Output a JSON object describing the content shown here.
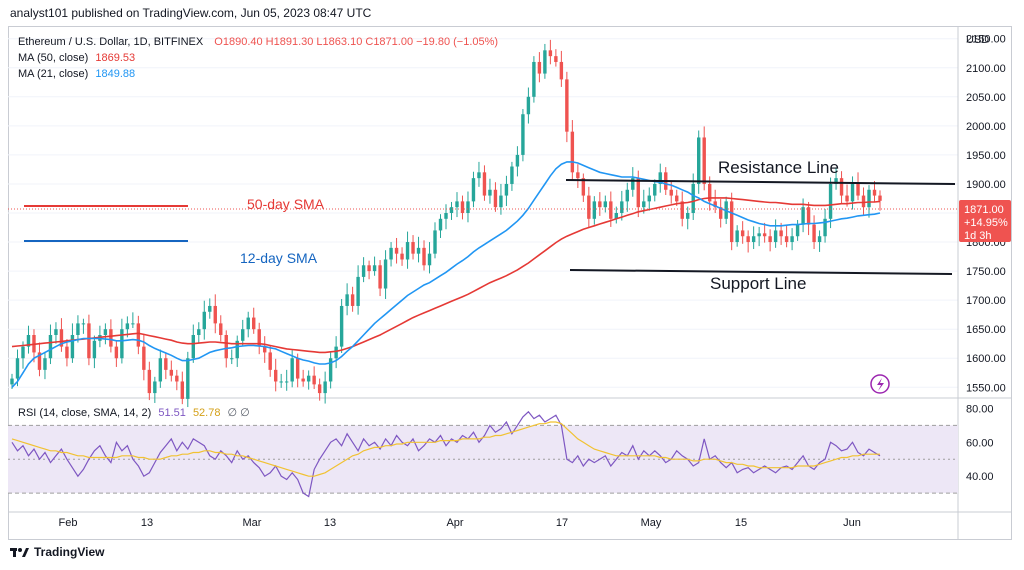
{
  "header": {
    "publisher_line": "analyst101 published on TradingView.com, Jun 05, 2023 08:47 UTC"
  },
  "legend": {
    "symbol": "Ethereum / U.S. Dollar, 1D, BITFINEX",
    "ohlc": "O1890.40  H1891.30  L1863.10  C1871.00  −19.80 (−1.05%)",
    "ma50_label": "MA (50, close)",
    "ma50_value": "1869.53",
    "ma21_label": "MA (21, close)",
    "ma21_value": "1849.88"
  },
  "rsi_legend": {
    "label": "RSI (14, close, SMA, 14, 2)",
    "value1": "51.51",
    "value2": "52.78",
    "icons": "∅  ∅"
  },
  "price_axis": {
    "currency": "USD",
    "ticks": [
      "2150.00",
      "2100.00",
      "2050.00",
      "2000.00",
      "1950.00",
      "1900.00",
      "1850.00",
      "1800.00",
      "1750.00",
      "1700.00",
      "1650.00",
      "1600.00",
      "1550.00"
    ]
  },
  "price_badge": {
    "price": "1871.00",
    "change": "+14.95%",
    "countdown": "1d 3h"
  },
  "rsi_axis": {
    "ticks": [
      "80.00",
      "60.00",
      "40.00"
    ]
  },
  "time_axis": {
    "labels": [
      "Feb",
      "13",
      "Mar",
      "13",
      "Apr",
      "17",
      "May",
      "15",
      "Jun"
    ]
  },
  "annotations": {
    "resistance": "Resistance Line",
    "support": "Support Line",
    "sma50": "50-day SMA",
    "sma12": "12-day SMA"
  },
  "footer": {
    "brand": "TradingView"
  },
  "colors": {
    "up": "#26a69a",
    "down": "#ef5350",
    "ma50": "#e53935",
    "ma21": "#2196f3",
    "rsi": "#7e57c2",
    "rsi_sma": "#f1c232",
    "rsi_band": "#ede7f6",
    "badge": "#ef5350"
  },
  "chart_data": {
    "type": "candlestick",
    "title": "Ethereum / U.S. Dollar, 1D, BITFINEX",
    "ylim": [
      1535,
      2165
    ],
    "x_labels": [
      "Feb",
      "13",
      "Mar",
      "13",
      "Apr",
      "17",
      "May",
      "15",
      "Jun"
    ],
    "close": [
      1565,
      1600,
      1620,
      1640,
      1610,
      1580,
      1600,
      1640,
      1650,
      1620,
      1600,
      1640,
      1660,
      1660,
      1600,
      1630,
      1640,
      1650,
      1620,
      1600,
      1650,
      1660,
      1660,
      1620,
      1580,
      1540,
      1560,
      1600,
      1580,
      1570,
      1560,
      1530,
      1600,
      1640,
      1650,
      1680,
      1690,
      1660,
      1640,
      1600,
      1600,
      1630,
      1650,
      1670,
      1650,
      1620,
      1610,
      1580,
      1560,
      1560,
      1560,
      1600,
      1565,
      1560,
      1570,
      1555,
      1540,
      1560,
      1600,
      1620,
      1690,
      1710,
      1690,
      1740,
      1760,
      1750,
      1760,
      1720,
      1770,
      1790,
      1780,
      1770,
      1800,
      1780,
      1790,
      1760,
      1780,
      1820,
      1840,
      1850,
      1860,
      1870,
      1850,
      1870,
      1910,
      1920,
      1880,
      1890,
      1860,
      1880,
      1900,
      1930,
      1950,
      2020,
      2050,
      2110,
      2090,
      2130,
      2120,
      2110,
      2080,
      1990,
      1920,
      1910,
      1880,
      1840,
      1870,
      1860,
      1870,
      1840,
      1850,
      1870,
      1890,
      1910,
      1860,
      1870,
      1880,
      1900,
      1920,
      1890,
      1880,
      1870,
      1840,
      1850,
      1900,
      1980,
      1900,
      1870,
      1860,
      1840,
      1870,
      1800,
      1820,
      1810,
      1800,
      1810,
      1815,
      1810,
      1800,
      1820,
      1810,
      1800,
      1810,
      1830,
      1860,
      1830,
      1800,
      1810,
      1840,
      1900,
      1910,
      1880,
      1870,
      1900,
      1880,
      1860,
      1890,
      1880,
      1871
    ],
    "ma50": [
      1620,
      1621,
      1622,
      1623,
      1624,
      1625,
      1626,
      1627,
      1628,
      1629,
      1630,
      1631,
      1632,
      1633,
      1634,
      1635,
      1636,
      1637,
      1638,
      1639,
      1640,
      1641,
      1642,
      1643,
      1641,
      1639,
      1637,
      1635,
      1633,
      1631,
      1628,
      1626,
      1625,
      1625,
      1626,
      1627,
      1628,
      1628,
      1627,
      1626,
      1625,
      1625,
      1625,
      1625,
      1625,
      1625,
      1624,
      1622,
      1620,
      1618,
      1616,
      1615,
      1614,
      1613,
      1612,
      1611,
      1610,
      1610,
      1611,
      1612,
      1614,
      1617,
      1620,
      1624,
      1628,
      1632,
      1636,
      1640,
      1645,
      1650,
      1655,
      1660,
      1665,
      1670,
      1674,
      1678,
      1682,
      1686,
      1690,
      1694,
      1698,
      1702,
      1706,
      1710,
      1715,
      1720,
      1725,
      1730,
      1734,
      1738,
      1742,
      1747,
      1752,
      1758,
      1764,
      1771,
      1778,
      1785,
      1792,
      1799,
      1805,
      1810,
      1814,
      1818,
      1822,
      1825,
      1828,
      1831,
      1834,
      1837,
      1840,
      1843,
      1846,
      1849,
      1852,
      1854,
      1856,
      1858,
      1860,
      1862,
      1864,
      1866,
      1867,
      1868,
      1870,
      1873,
      1875,
      1876,
      1876,
      1876,
      1876,
      1875,
      1874,
      1873,
      1872,
      1871,
      1870,
      1869,
      1868,
      1868,
      1867,
      1866,
      1865,
      1865,
      1865,
      1864,
      1863,
      1863,
      1863,
      1864,
      1865,
      1866,
      1866,
      1867,
      1868,
      1868,
      1869,
      1869,
      1870
    ],
    "ma21": [
      1550,
      1560,
      1575,
      1590,
      1600,
      1605,
      1610,
      1615,
      1620,
      1625,
      1628,
      1630,
      1632,
      1634,
      1634,
      1634,
      1634,
      1633,
      1632,
      1630,
      1630,
      1631,
      1632,
      1631,
      1628,
      1622,
      1617,
      1613,
      1609,
      1605,
      1600,
      1596,
      1596,
      1598,
      1600,
      1605,
      1610,
      1613,
      1615,
      1617,
      1618,
      1620,
      1621,
      1622,
      1622,
      1621,
      1620,
      1618,
      1616,
      1612,
      1608,
      1604,
      1600,
      1597,
      1595,
      1592,
      1590,
      1590,
      1592,
      1596,
      1603,
      1612,
      1620,
      1630,
      1640,
      1650,
      1660,
      1668,
      1676,
      1684,
      1692,
      1700,
      1708,
      1714,
      1720,
      1726,
      1730,
      1736,
      1742,
      1748,
      1755,
      1762,
      1768,
      1775,
      1783,
      1790,
      1796,
      1802,
      1808,
      1814,
      1820,
      1828,
      1836,
      1846,
      1858,
      1872,
      1886,
      1900,
      1914,
      1926,
      1934,
      1938,
      1938,
      1936,
      1932,
      1928,
      1924,
      1920,
      1918,
      1916,
      1914,
      1912,
      1912,
      1912,
      1910,
      1908,
      1906,
      1904,
      1903,
      1900,
      1898,
      1894,
      1890,
      1886,
      1880,
      1876,
      1870,
      1866,
      1862,
      1858,
      1854,
      1850,
      1846,
      1842,
      1838,
      1835,
      1832,
      1830,
      1828,
      1828,
      1828,
      1829,
      1830,
      1830,
      1831,
      1832,
      1832,
      1833,
      1834,
      1836,
      1838,
      1840,
      1841,
      1843,
      1845,
      1846,
      1847,
      1848,
      1850
    ],
    "rsi": [
      60,
      55,
      58,
      52,
      56,
      50,
      54,
      48,
      52,
      56,
      50,
      45,
      40,
      44,
      50,
      55,
      58,
      52,
      48,
      60,
      55,
      58,
      50,
      46,
      40,
      42,
      48,
      54,
      58,
      62,
      55,
      60,
      56,
      62,
      60,
      58,
      52,
      50,
      55,
      52,
      48,
      55,
      50,
      52,
      48,
      45,
      40,
      42,
      46,
      40,
      38,
      42,
      38,
      30,
      28,
      44,
      50,
      55,
      60,
      62,
      58,
      65,
      60,
      55,
      62,
      58,
      60,
      56,
      62,
      58,
      64,
      60,
      58,
      62,
      55,
      58,
      62,
      60,
      64,
      58,
      62,
      60,
      64,
      62,
      66,
      60,
      64,
      70,
      66,
      68,
      72,
      65,
      70,
      75,
      78,
      74,
      76,
      72,
      74,
      76,
      70,
      50,
      48,
      52,
      46,
      50,
      48,
      50,
      52,
      46,
      50,
      54,
      52,
      58,
      50,
      55,
      52,
      55,
      52,
      48,
      50,
      55,
      52,
      50,
      46,
      48,
      62,
      50,
      52,
      48,
      45,
      48,
      42,
      44,
      45,
      42,
      44,
      46,
      44,
      42,
      45,
      46,
      44,
      48,
      52,
      46,
      44,
      48,
      50,
      60,
      58,
      55,
      56,
      60,
      54,
      52,
      56,
      54,
      52
    ],
    "rsi_sma": [
      62,
      61,
      60,
      59,
      58,
      57,
      56,
      55,
      55,
      54,
      54,
      53,
      52,
      52,
      51,
      51,
      51,
      51,
      51,
      51,
      52,
      52,
      52,
      51,
      51,
      50,
      50,
      50,
      51,
      52,
      52,
      53,
      53,
      54,
      54,
      55,
      55,
      54,
      54,
      53,
      53,
      52,
      52,
      51,
      50,
      49,
      48,
      47,
      46,
      45,
      44,
      43,
      42,
      41,
      40,
      40,
      41,
      42,
      44,
      46,
      48,
      50,
      52,
      53,
      55,
      56,
      57,
      57,
      58,
      58,
      59,
      59,
      60,
      60,
      60,
      60,
      60,
      60,
      61,
      61,
      61,
      61,
      62,
      62,
      62,
      62,
      63,
      63,
      64,
      64,
      65,
      66,
      67,
      68,
      69,
      70,
      71,
      71,
      72,
      72,
      71,
      68,
      65,
      62,
      60,
      58,
      56,
      55,
      54,
      53,
      52,
      52,
      52,
      52,
      52,
      52,
      52,
      52,
      51,
      51,
      50,
      50,
      50,
      50,
      49,
      49,
      50,
      50,
      50,
      49,
      48,
      48,
      47,
      47,
      46,
      46,
      45,
      45,
      45,
      45,
      45,
      45,
      45,
      46,
      46,
      46,
      46,
      47,
      48,
      49,
      50,
      51,
      51,
      52,
      52,
      53,
      53,
      53,
      53
    ]
  }
}
